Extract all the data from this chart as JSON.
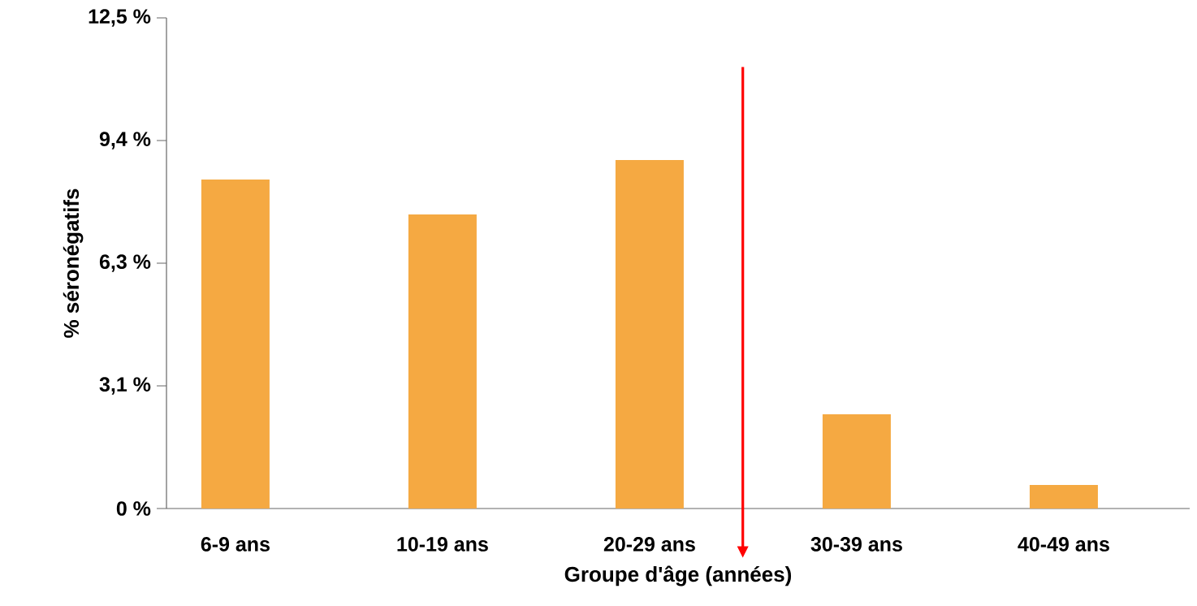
{
  "chart_data": {
    "type": "bar",
    "xlabel": "Groupe d'âge (années)",
    "ylabel": "% séronégatifs",
    "categories": [
      "6-9 ans",
      "10-19 ans",
      "20-29 ans",
      "30-39 ans",
      "40-49 ans"
    ],
    "values": [
      8.38,
      7.49,
      8.88,
      2.4,
      0.6
    ],
    "color": "#f5a942",
    "ylim": [
      0,
      12.5
    ],
    "yticks": [
      {
        "value": 0,
        "label": "0 %"
      },
      {
        "value": 3.125,
        "label": "3,1 %"
      },
      {
        "value": 6.25,
        "label": "6,3 %"
      },
      {
        "value": 9.375,
        "label": "9,4 %"
      },
      {
        "value": 12.5,
        "label": "12,5 %"
      }
    ],
    "grid": false
  }
}
